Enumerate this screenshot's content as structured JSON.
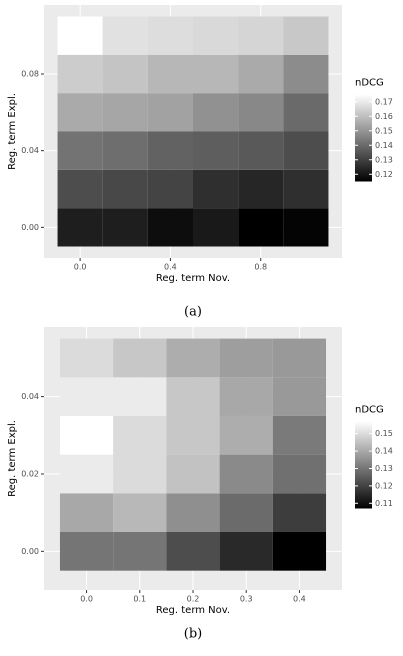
{
  "chart_data": [
    {
      "type": "heatmap",
      "title": "(a)",
      "xlabel": "Reg. term Nov.",
      "ylabel": "Reg. term Expl.",
      "legend_title": "nDCG",
      "x": [
        0,
        0.2,
        0.4,
        0.6,
        0.8,
        1.0
      ],
      "y": [
        0,
        0.02,
        0.04,
        0.06,
        0.08,
        0.1
      ],
      "values": [
        [
          0.122,
          0.122,
          0.118,
          0.121,
          0.115,
          0.116
        ],
        [
          0.133,
          0.132,
          0.131,
          0.126,
          0.124,
          0.126
        ],
        [
          0.142,
          0.141,
          0.138,
          0.137,
          0.136,
          0.133
        ],
        [
          0.155,
          0.154,
          0.153,
          0.149,
          0.147,
          0.14
        ],
        [
          0.163,
          0.161,
          0.158,
          0.158,
          0.155,
          0.148
        ],
        [
          0.175,
          0.168,
          0.167,
          0.166,
          0.165,
          0.162
        ]
      ],
      "xlim": [
        -0.16,
        1.16
      ],
      "ylim": [
        -0.016,
        0.116
      ],
      "xticks": [
        {
          "value": 0,
          "label": "0.0"
        },
        0.4,
        0.8
      ],
      "yticks": [
        {
          "value": 0,
          "label": "0.00"
        },
        {
          "value": 0.04,
          "label": "0.04"
        },
        {
          "value": 0.08,
          "label": "0.08"
        }
      ],
      "clim": [
        0.115,
        0.175
      ],
      "cticks": [
        0.12,
        0.13,
        0.14,
        0.15,
        0.16,
        0.17
      ],
      "colors": [
        "#000000",
        "#ffffff"
      ],
      "panel_color": "#ebebeb",
      "grid": true
    },
    {
      "type": "heatmap",
      "title": "(b)",
      "xlabel": "Reg. term Nov.",
      "ylabel": "Reg. term Expl.",
      "legend_title": "nDCG",
      "x": [
        0,
        0.1,
        0.2,
        0.3,
        0.4
      ],
      "y": [
        0,
        0.01,
        0.02,
        0.03,
        0.04,
        0.05
      ],
      "values": [
        [
          0.13,
          0.13,
          0.122,
          0.115,
          0.107
        ],
        [
          0.14,
          0.143,
          0.135,
          0.128,
          0.119
        ],
        [
          0.153,
          0.15,
          0.145,
          0.134,
          0.129
        ],
        [
          0.157,
          0.15,
          0.146,
          0.141,
          0.131
        ],
        [
          0.153,
          0.153,
          0.146,
          0.14,
          0.137
        ],
        [
          0.15,
          0.146,
          0.141,
          0.138,
          0.137
        ]
      ],
      "xlim": [
        -0.08,
        0.48
      ],
      "ylim": [
        -0.01,
        0.058
      ],
      "xticks": [
        {
          "value": 0,
          "label": "0.0"
        },
        0.1,
        0.2,
        0.3,
        0.4
      ],
      "yticks": [
        {
          "value": 0,
          "label": "0.00"
        },
        {
          "value": 0.02,
          "label": "0.02"
        },
        {
          "value": 0.04,
          "label": "0.04"
        }
      ],
      "clim": [
        0.107,
        0.157
      ],
      "cticks": [
        0.11,
        0.12,
        0.13,
        0.14,
        0.15
      ],
      "colors": [
        "#000000",
        "#ffffff"
      ],
      "panel_color": "#ebebeb",
      "grid": true
    }
  ]
}
